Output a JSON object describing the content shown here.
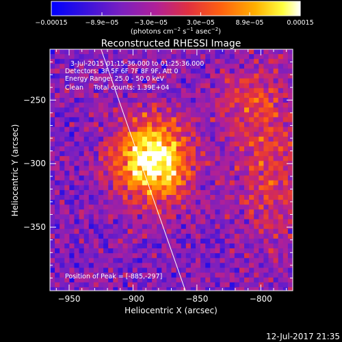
{
  "chart_data": {
    "type": "heatmap",
    "title": "Reconstructed RHESSI Image",
    "xlabel": "Heliocentric X (arcsec)",
    "ylabel": "Heliocentric Y (arcsec)",
    "xlim": [
      -965,
      -775
    ],
    "ylim": [
      -400,
      -210
    ],
    "x_ticks": [
      {
        "value": -950,
        "label": "−950"
      },
      {
        "value": -900,
        "label": "−900"
      },
      {
        "value": -850,
        "label": "−850"
      },
      {
        "value": -800,
        "label": "−800"
      }
    ],
    "y_ticks": [
      {
        "value": -250,
        "label": "−250"
      },
      {
        "value": -300,
        "label": "−300"
      },
      {
        "value": -350,
        "label": "−350"
      }
    ],
    "colorbar": {
      "range": [
        -0.00015,
        0.00015
      ],
      "unit_label_parts": [
        "(photons cm",
        "−2",
        " s",
        "−1",
        " asec",
        "−2",
        ")"
      ],
      "ticks": [
        {
          "value": -0.00015,
          "label": "−0.00015"
        },
        {
          "value": -8.9e-05,
          "label": "−8.9e−05"
        },
        {
          "value": -3e-05,
          "label": "−3.0e−05"
        },
        {
          "value": 3e-05,
          "label": "3.0e−05"
        },
        {
          "value": 8.9e-05,
          "label": "8.9e−05"
        },
        {
          "value": 0.00015,
          "label": "0.00015"
        }
      ]
    },
    "annotations": [
      "3-Jul-2015 01:15:36.000 to 01:25:36.000",
      "Detectors: 3F 5F 6F 7F 8F 9F, Att 0",
      "Energy Range: 25.0 - 50.0 keV",
      "Clean     Total counts: 1.39E+04"
    ],
    "peak_label": "Position of Peak = [-885,-297]",
    "peak": {
      "x": -885,
      "y": -297
    },
    "limb_line": [
      {
        "x": -925,
        "y": -210
      },
      {
        "x": -859,
        "y": -400
      }
    ],
    "timestamp": "12-Jul-2017 21:35"
  }
}
